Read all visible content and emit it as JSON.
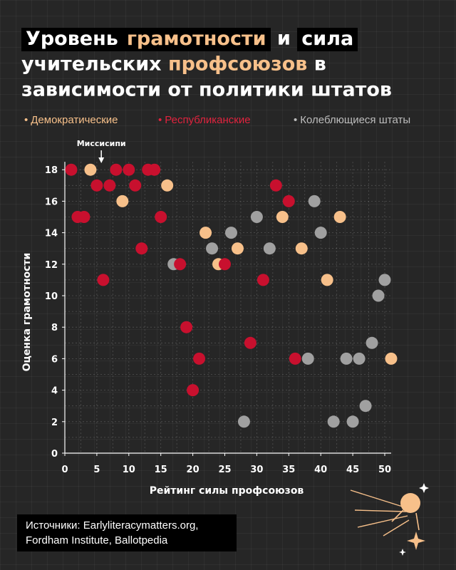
{
  "title": {
    "line1": {
      "w1": "Уровень",
      "w2": "грамотности",
      "w3": "и",
      "w4": "сила"
    },
    "line2": {
      "w1": "учительских",
      "w2": "профсоюзов",
      "w3": "в"
    },
    "line3": "зависимости от политики штатов"
  },
  "source": {
    "line1": "Источники: Earlyliteracymatters.org,",
    "line2": "Fordham Institute, Ballotpedia"
  },
  "colors": {
    "democratic": "#f7c08a",
    "republican": "#c8102e",
    "swing": "#a0a0a0",
    "accent": "#f7c08a"
  },
  "chart_data": {
    "type": "scatter",
    "xlabel": "Рейтинг силы профсоюзов",
    "ylabel": "Оценка грамотности",
    "xlim": [
      0,
      51
    ],
    "ylim": [
      0,
      18
    ],
    "xticks": [
      "0",
      "5",
      "10",
      "15",
      "20",
      "25",
      "30",
      "35",
      "40",
      "45",
      "50"
    ],
    "yticks": [
      "0",
      "2",
      "4",
      "6",
      "8",
      "10",
      "12",
      "14",
      "16",
      "18"
    ],
    "grid": true,
    "legend_position": "top",
    "annotation": {
      "text": "Миссисипи",
      "x": 5.7,
      "y": 18
    },
    "series": [
      {
        "name": "Демократические",
        "color": "#f7c08a",
        "points": [
          [
            4,
            18
          ],
          [
            9,
            16
          ],
          [
            16,
            17
          ],
          [
            22,
            14
          ],
          [
            24,
            12
          ],
          [
            27,
            13
          ],
          [
            34,
            15
          ],
          [
            37,
            13
          ],
          [
            43,
            15
          ],
          [
            41,
            11
          ],
          [
            51,
            6
          ]
        ]
      },
      {
        "name": "Республиканские",
        "color": "#c8102e",
        "points": [
          [
            1,
            18
          ],
          [
            8,
            18
          ],
          [
            10,
            18
          ],
          [
            13,
            18
          ],
          [
            14,
            18
          ],
          [
            5,
            17
          ],
          [
            7,
            17
          ],
          [
            11,
            17
          ],
          [
            2,
            15
          ],
          [
            3,
            15
          ],
          [
            15,
            15
          ],
          [
            12,
            13
          ],
          [
            6,
            11
          ],
          [
            18,
            12
          ],
          [
            25,
            12
          ],
          [
            19,
            8
          ],
          [
            21,
            6
          ],
          [
            20,
            4
          ],
          [
            29,
            7
          ],
          [
            31,
            11
          ],
          [
            33,
            17
          ],
          [
            35,
            16
          ],
          [
            36,
            6
          ]
        ]
      },
      {
        "name": "Колеблющиеся штаты",
        "color": "#a0a0a0",
        "points": [
          [
            17,
            12
          ],
          [
            23,
            13
          ],
          [
            26,
            14
          ],
          [
            28,
            2
          ],
          [
            30,
            15
          ],
          [
            32,
            13
          ],
          [
            38,
            6
          ],
          [
            39,
            16
          ],
          [
            40,
            14
          ],
          [
            42,
            2
          ],
          [
            44,
            6
          ],
          [
            45,
            2
          ],
          [
            46,
            6
          ],
          [
            47,
            3
          ],
          [
            48,
            7
          ],
          [
            49,
            10
          ],
          [
            50,
            11
          ]
        ]
      }
    ]
  }
}
